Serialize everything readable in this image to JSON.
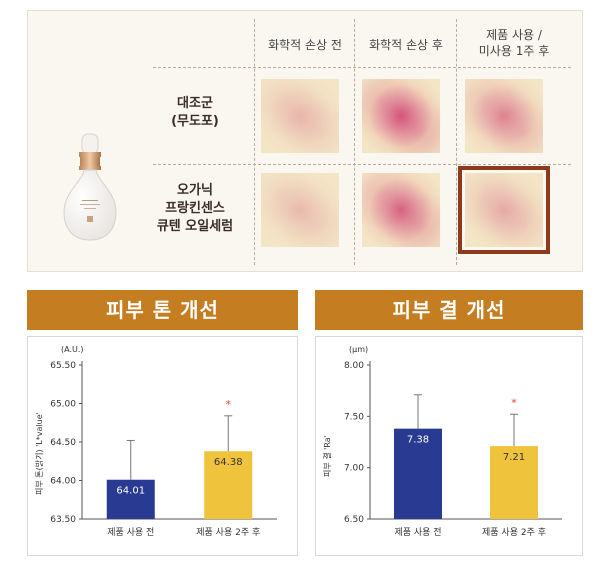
{
  "comparison": {
    "columns": [
      "화학적 손상 전",
      "화학적 손상 후",
      "제품 사용 /\n미사용 1주 후"
    ],
    "rows": [
      {
        "label": "대조군\n(무도포)"
      },
      {
        "label": "오가닉\n프랑킨센스\n큐텐 오일세럼"
      }
    ],
    "swatch_intensity": [
      [
        0.1,
        0.8,
        0.45
      ],
      [
        0.08,
        0.7,
        0.18
      ]
    ],
    "highlight_cell": [
      1,
      2
    ]
  },
  "product": {
    "icon": "serum-dropper-bottle-icon"
  },
  "colors": {
    "banner": "#c57d22",
    "before_bar": "#283a91",
    "after_bar": "#f0c33c",
    "star": "#e0452a",
    "highlight": "#8b3a1c"
  },
  "charts": [
    {
      "banner": "피부 톤 개선",
      "unit": "(A.U.)",
      "ylabel": "피부 톤(밝기) 'L*value'",
      "ticks": [
        "65.50",
        "65.00",
        "64.50",
        "64.00",
        "63.50"
      ]
    },
    {
      "banner": "피부 결 개선",
      "unit": "(μm)",
      "ylabel": "피부 결 'Ra'",
      "ticks": [
        "8.00",
        "7.50",
        "7.00",
        "6.50"
      ]
    }
  ],
  "chart_data": [
    {
      "type": "bar",
      "title": "피부 톤 개선",
      "ylabel": "피부 톤(밝기) 'L*value'",
      "categories": [
        "제품 사용 전",
        "제품 사용 2주 후"
      ],
      "values": [
        64.01,
        64.38
      ],
      "error": [
        0.51,
        0.46
      ],
      "significant": [
        false,
        true
      ],
      "ylim": [
        63.5,
        65.5
      ],
      "grid": false
    },
    {
      "type": "bar",
      "title": "피부 결 개선",
      "ylabel": "피부 결 'Ra'",
      "categories": [
        "제품 사용 전",
        "제품 사용 2주 후"
      ],
      "values": [
        7.38,
        7.21
      ],
      "error": [
        0.33,
        0.31
      ],
      "significant": [
        false,
        true
      ],
      "ylim": [
        6.5,
        8.0
      ],
      "grid": false
    }
  ]
}
